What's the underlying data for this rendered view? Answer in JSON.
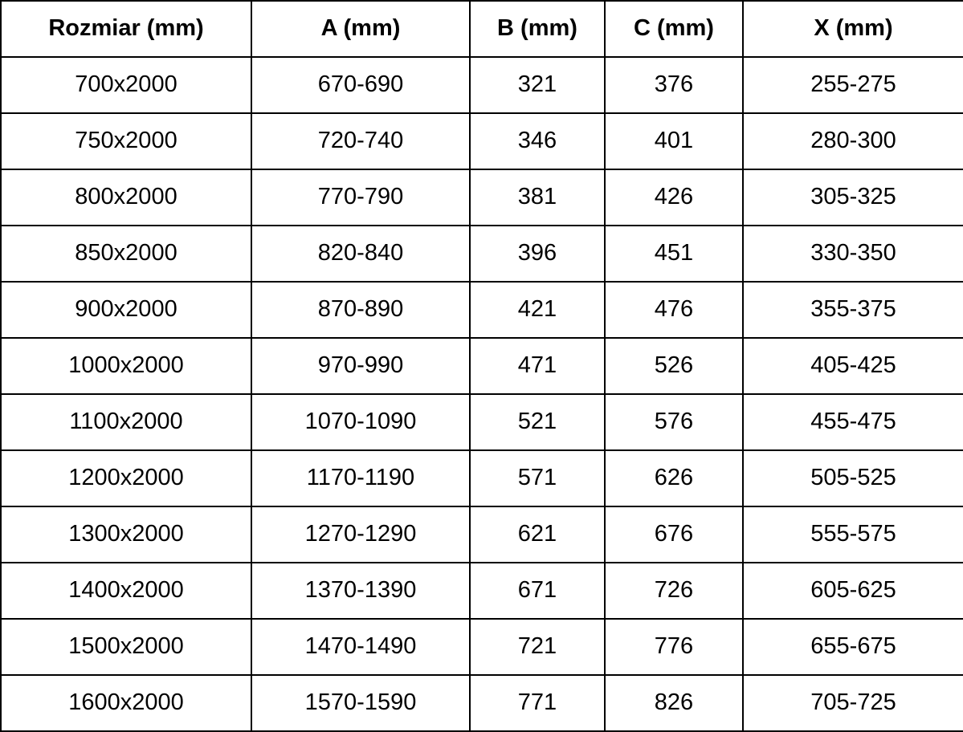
{
  "chart_data": {
    "type": "table",
    "title": "",
    "columns": [
      "Rozmiar (mm)",
      "A (mm)",
      "B (mm)",
      "C (mm)",
      "X (mm)"
    ],
    "rows": [
      [
        "700x2000",
        "670-690",
        "321",
        "376",
        "255-275"
      ],
      [
        "750x2000",
        "720-740",
        "346",
        "401",
        "280-300"
      ],
      [
        "800x2000",
        "770-790",
        "381",
        "426",
        "305-325"
      ],
      [
        "850x2000",
        "820-840",
        "396",
        "451",
        "330-350"
      ],
      [
        "900x2000",
        "870-890",
        "421",
        "476",
        "355-375"
      ],
      [
        "1000x2000",
        "970-990",
        "471",
        "526",
        "405-425"
      ],
      [
        "1100x2000",
        "1070-1090",
        "521",
        "576",
        "455-475"
      ],
      [
        "1200x2000",
        "1170-1190",
        "571",
        "626",
        "505-525"
      ],
      [
        "1300x2000",
        "1270-1290",
        "621",
        "676",
        "555-575"
      ],
      [
        "1400x2000",
        "1370-1390",
        "671",
        "726",
        "605-625"
      ],
      [
        "1500x2000",
        "1470-1490",
        "721",
        "776",
        "655-675"
      ],
      [
        "1600x2000",
        "1570-1590",
        "771",
        "826",
        "705-725"
      ]
    ],
    "layout": {
      "grid": "all-borders",
      "border_color": "#000000",
      "background": "#ffffff",
      "text_color": "#000000",
      "header_bold": true
    }
  }
}
